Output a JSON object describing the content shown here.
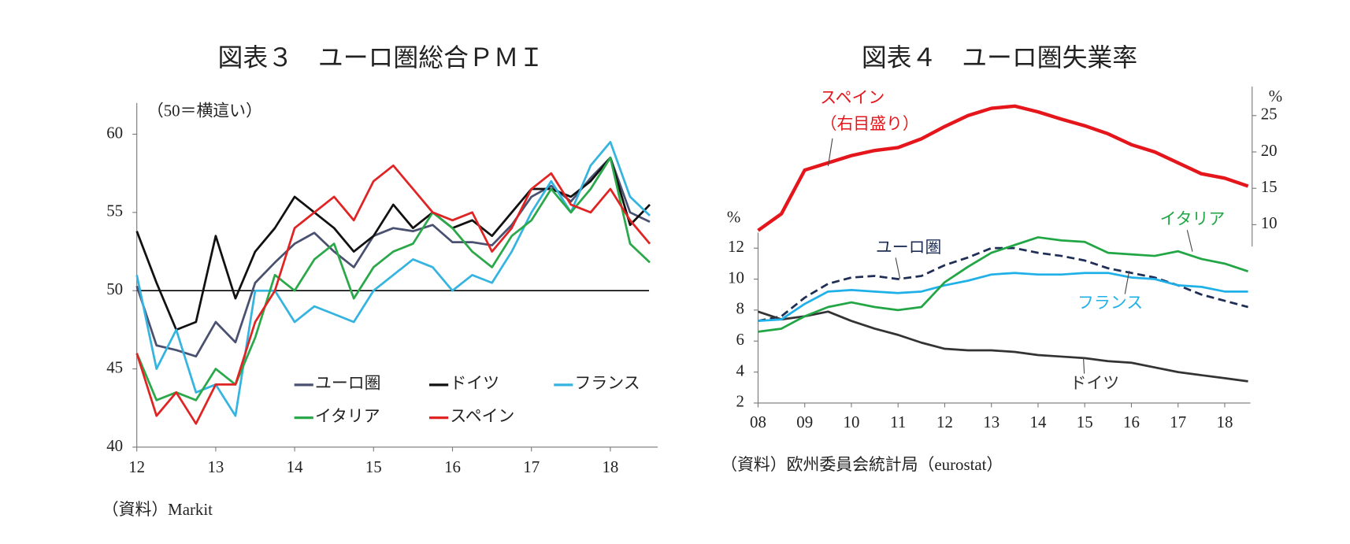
{
  "chart_data": [
    {
      "type": "line",
      "title": "図表３　ユーロ圏総合ＰＭＩ",
      "y_label": "（50＝横這い）",
      "source": "（資料）Markit",
      "x": [
        12,
        12.25,
        12.5,
        12.75,
        13,
        13.25,
        13.5,
        13.75,
        14,
        14.25,
        14.5,
        14.75,
        15,
        15.25,
        15.5,
        15.75,
        16,
        16.25,
        16.5,
        16.75,
        17,
        17.25,
        17.5,
        17.75,
        18,
        18.25,
        18.5
      ],
      "xlim": [
        12,
        18.6
      ],
      "xticks": [
        12,
        13,
        14,
        15,
        16,
        17,
        18
      ],
      "ylim": [
        40,
        62
      ],
      "yticks": [
        40,
        45,
        50,
        55,
        60
      ],
      "reference_line": 50,
      "legend": "lower right",
      "series": [
        {
          "name": "ユーロ圏",
          "color": "#4a5170",
          "values": [
            50.3,
            46.5,
            46.2,
            45.8,
            48.0,
            46.7,
            50.5,
            51.8,
            53.0,
            53.7,
            52.5,
            51.5,
            53.5,
            54.0,
            53.8,
            54.2,
            53.1,
            53.1,
            52.9,
            54.2,
            56.0,
            56.7,
            55.7,
            57.2,
            58.5,
            55.0,
            54.4
          ]
        },
        {
          "name": "ドイツ",
          "color": "#111111",
          "values": [
            53.8,
            50.5,
            47.5,
            48.0,
            53.5,
            49.5,
            52.5,
            54.0,
            56.0,
            55.0,
            54.0,
            52.5,
            53.5,
            55.5,
            54.0,
            55.0,
            54.0,
            54.5,
            53.5,
            55.0,
            56.5,
            56.5,
            56.0,
            57.0,
            58.5,
            54.2,
            55.5
          ]
        },
        {
          "name": "フランス",
          "color": "#35b4e0",
          "values": [
            51.0,
            45.0,
            47.5,
            43.5,
            44.0,
            42.0,
            50.0,
            50.0,
            48.0,
            49.0,
            48.5,
            48.0,
            50.0,
            51.0,
            52.0,
            51.5,
            50.0,
            51.0,
            50.5,
            52.5,
            55.0,
            57.0,
            55.0,
            58.0,
            59.5,
            56.0,
            54.8
          ]
        },
        {
          "name": "イタリア",
          "color": "#2aa84a",
          "values": [
            46.0,
            43.0,
            43.5,
            43.0,
            45.0,
            44.0,
            47.0,
            51.0,
            50.0,
            52.0,
            53.0,
            49.5,
            51.5,
            52.5,
            53.0,
            55.0,
            54.0,
            52.5,
            51.5,
            53.5,
            54.5,
            56.5,
            55.0,
            56.5,
            58.5,
            53.0,
            51.8
          ]
        },
        {
          "name": "スペイン",
          "color": "#e02424",
          "values": [
            46.0,
            42.0,
            43.5,
            41.5,
            44.0,
            44.0,
            48.0,
            50.0,
            54.0,
            55.0,
            56.0,
            54.5,
            57.0,
            58.0,
            56.5,
            55.0,
            54.5,
            55.0,
            52.5,
            54.0,
            56.5,
            57.5,
            55.5,
            55.0,
            56.5,
            54.5,
            53.0
          ]
        }
      ]
    },
    {
      "type": "line",
      "title": "図表４　ユーロ圏失業率",
      "y_label": "%",
      "y2_label": "%",
      "source": "（資料）欧州委員会統計局（eurostat）",
      "annotations": [
        "（右目盛り）"
      ],
      "x": [
        8,
        8.5,
        9,
        9.5,
        10,
        10.5,
        11,
        11.5,
        12,
        12.5,
        13,
        13.5,
        14,
        14.5,
        15,
        15.5,
        16,
        16.5,
        17,
        17.5,
        18,
        18.5
      ],
      "xlim": [
        8,
        18.55
      ],
      "xticks": [
        {
          "value": 8,
          "label": "08"
        },
        {
          "value": 9,
          "label": "09"
        },
        10,
        11,
        12,
        13,
        14,
        15,
        16,
        17,
        18
      ],
      "ylim": [
        2,
        13
      ],
      "yticks": [
        2,
        4,
        6,
        8,
        10,
        12
      ],
      "y2lim": [
        7,
        29
      ],
      "y2ticks": [
        10,
        15,
        20,
        25
      ],
      "legend": "inline",
      "series": [
        {
          "name": "ユーロ圏",
          "color": "#1f2e55",
          "dash": true,
          "values": [
            7.3,
            7.6,
            8.8,
            9.7,
            10.1,
            10.2,
            10.0,
            10.2,
            10.9,
            11.4,
            12.0,
            12.0,
            11.7,
            11.5,
            11.2,
            10.7,
            10.4,
            10.1,
            9.6,
            9.0,
            8.6,
            8.2
          ]
        },
        {
          "name": "ドイツ",
          "color": "#333333",
          "values": [
            7.9,
            7.4,
            7.6,
            7.9,
            7.3,
            6.8,
            6.4,
            5.9,
            5.5,
            5.4,
            5.4,
            5.3,
            5.1,
            5.0,
            4.9,
            4.7,
            4.6,
            4.3,
            4.0,
            3.8,
            3.6,
            3.4
          ]
        },
        {
          "name": "フランス",
          "color": "#1fb0e8",
          "values": [
            7.3,
            7.4,
            8.4,
            9.2,
            9.3,
            9.2,
            9.1,
            9.2,
            9.6,
            9.9,
            10.3,
            10.4,
            10.3,
            10.3,
            10.4,
            10.4,
            10.1,
            10.0,
            9.6,
            9.5,
            9.2,
            9.2
          ]
        },
        {
          "name": "イタリア",
          "color": "#22a645",
          "values": [
            6.6,
            6.8,
            7.6,
            8.2,
            8.5,
            8.2,
            8.0,
            8.2,
            9.8,
            10.8,
            11.7,
            12.2,
            12.7,
            12.5,
            12.4,
            11.7,
            11.6,
            11.5,
            11.8,
            11.3,
            11.0,
            10.5
          ]
        },
        {
          "name": "スペイン",
          "color": "#e5161b",
          "axis": "y2",
          "values": [
            9.2,
            11.5,
            17.5,
            18.5,
            19.5,
            20.2,
            20.6,
            21.8,
            23.5,
            25.0,
            26.0,
            26.3,
            25.5,
            24.5,
            23.6,
            22.5,
            21.0,
            20.0,
            18.5,
            17.0,
            16.4,
            15.3
          ]
        }
      ]
    }
  ]
}
